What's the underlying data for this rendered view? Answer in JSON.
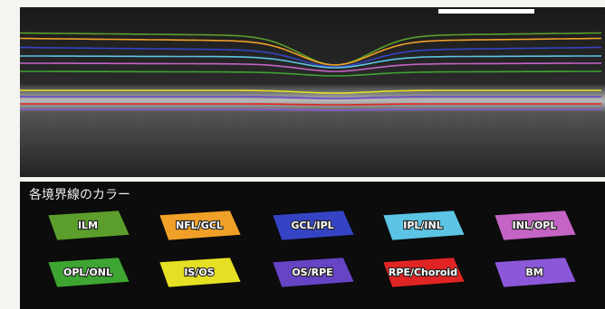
{
  "legend": {
    "title": "各境界線のカラー",
    "items": [
      {
        "label": "ILM",
        "color": "#5c9e2c"
      },
      {
        "label": "NFL/GCL",
        "color": "#f0a028"
      },
      {
        "label": "GCL/IPL",
        "color": "#3444c4"
      },
      {
        "label": "IPL/INL",
        "color": "#5cc4e4"
      },
      {
        "label": "INL/OPL",
        "color": "#c464c4"
      },
      {
        "label": "OPL/ONL",
        "color": "#3ea432"
      },
      {
        "label": "IS/OS",
        "color": "#e6e024"
      },
      {
        "label": "OS/RPE",
        "color": "#6644c4"
      },
      {
        "label": "RPE/Choroid",
        "color": "#e02424"
      },
      {
        "label": "BM",
        "color": "#8a58d8"
      }
    ]
  }
}
